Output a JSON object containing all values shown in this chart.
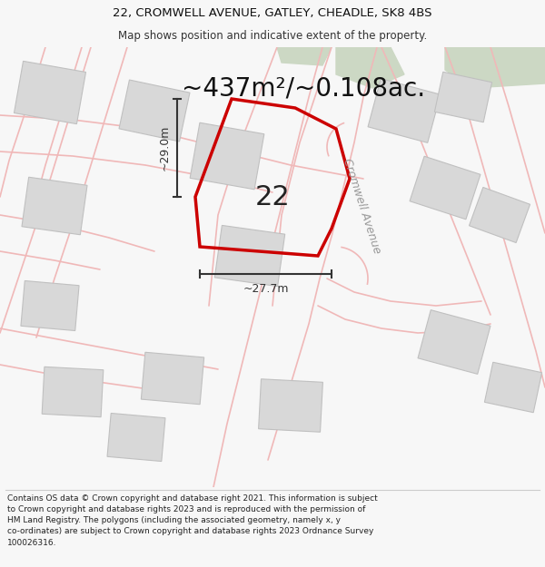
{
  "title": "22, CROMWELL AVENUE, GATLEY, CHEADLE, SK8 4BS",
  "subtitle": "Map shows position and indicative extent of the property.",
  "area_label": "~437m²/~0.108ac.",
  "plot_number": "22",
  "dim_height": "~29.0m",
  "dim_width": "~27.7m",
  "street_label": "Cromwell Avenue",
  "footer_text": "Contains OS data © Crown copyright and database right 2021. This information is subject to Crown copyright and database rights 2023 and is reproduced with the permission of\nHM Land Registry. The polygons (including the associated geometry, namely x, y\nco-ordinates) are subject to Crown copyright and database rights 2023 Ordnance Survey\n100026316.",
  "bg_color": "#f7f7f7",
  "map_bg": "#ffffff",
  "red_color": "#cc0000",
  "road_color": "#f0b8b8",
  "road_fill": "#f5f5f5",
  "building_fill": "#d8d8d8",
  "building_edge": "#c0c0c0",
  "green_fill": "#ccd8c4",
  "street_label_color": "#999999",
  "dim_color": "#333333",
  "fig_width": 6.0,
  "fig_height": 6.25,
  "dpi": 100,
  "title_fontsize": 9.5,
  "subtitle_fontsize": 8.5,
  "area_fontsize": 20,
  "plot_num_fontsize": 22,
  "dim_fontsize": 9,
  "street_fontsize": 9,
  "footer_fontsize": 6.5
}
